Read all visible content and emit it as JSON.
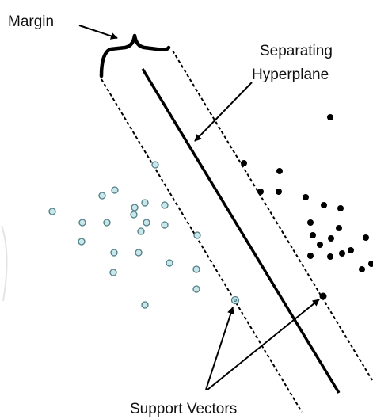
{
  "labels": {
    "margin": "Margin",
    "hyperplane_line1": "Separating",
    "hyperplane_line2": "Hyperplane",
    "support_vectors": "Support Vectors"
  },
  "colors": {
    "background": "#ffffff",
    "ink": "#000000",
    "class_a_fill": "#c9e6ea",
    "class_a_stroke": "#4f7e86",
    "class_b_fill": "#000000"
  },
  "elements": {
    "class_a_point_count": 24,
    "class_b_point_count": 21,
    "support_vector_count": 2
  }
}
